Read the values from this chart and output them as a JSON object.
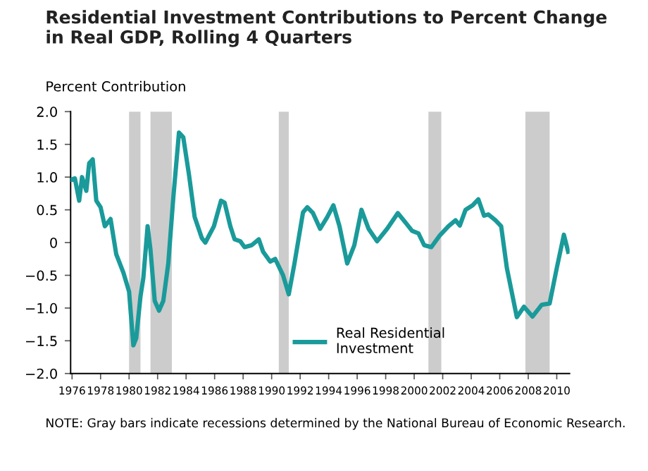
{
  "chart_data": {
    "type": "line",
    "title": "Residential Investment Contributions to Percent Change\nin Real GDP, Rolling 4 Quarters",
    "ylabel": "Percent Contribution",
    "annotations": [
      "NOTE: Gray bars indicate recessions determined by the National Bureau of Economic Research."
    ],
    "series": [
      {
        "name": "Real Residential\nInvestment",
        "color": "#1a9a9a",
        "x": [
          1975.9,
          1976.2,
          1976.5,
          1976.7,
          1977.0,
          1977.2,
          1977.45,
          1977.7,
          1978.0,
          1978.3,
          1978.7,
          1979.1,
          1979.6,
          1980.0,
          1980.3,
          1980.5,
          1980.8,
          1981.0,
          1981.3,
          1981.5,
          1981.8,
          1982.1,
          1982.4,
          1982.75,
          1983.1,
          1983.5,
          1983.8,
          1984.2,
          1984.6,
          1985.1,
          1985.35,
          1985.95,
          1986.45,
          1986.7,
          1987.1,
          1987.4,
          1987.8,
          1988.1,
          1988.6,
          1989.1,
          1989.4,
          1989.9,
          1990.25,
          1990.8,
          1991.2,
          1991.6,
          1992.2,
          1992.5,
          1992.9,
          1993.4,
          1993.9,
          1994.33,
          1994.76,
          1995.3,
          1995.8,
          1996.3,
          1996.8,
          1997.4,
          1998.1,
          1998.85,
          1999.45,
          1999.85,
          2000.3,
          2000.7,
          2001.2,
          2001.8,
          2002.4,
          2002.9,
          2003.2,
          2003.6,
          2004.1,
          2004.5,
          2004.9,
          2005.2,
          2005.7,
          2006.1,
          2006.5,
          2007.2,
          2007.7,
          2008.3,
          2008.95,
          2009.5,
          2010.0,
          2010.5,
          2010.8
        ],
        "values": [
          0.96,
          0.98,
          0.64,
          1.0,
          0.79,
          1.21,
          1.27,
          0.64,
          0.54,
          0.25,
          0.36,
          -0.18,
          -0.46,
          -0.75,
          -1.57,
          -1.46,
          -0.82,
          -0.54,
          0.25,
          -0.11,
          -0.89,
          -1.04,
          -0.89,
          -0.32,
          0.68,
          1.68,
          1.61,
          1.04,
          0.39,
          0.07,
          0.0,
          0.25,
          0.64,
          0.61,
          0.25,
          0.05,
          0.02,
          -0.07,
          -0.04,
          0.05,
          -0.14,
          -0.29,
          -0.25,
          -0.5,
          -0.79,
          -0.32,
          0.46,
          0.54,
          0.45,
          0.21,
          0.39,
          0.57,
          0.25,
          -0.32,
          -0.04,
          0.5,
          0.21,
          0.02,
          0.21,
          0.45,
          0.29,
          0.18,
          0.14,
          -0.04,
          -0.07,
          0.11,
          0.25,
          0.34,
          0.26,
          0.5,
          0.57,
          0.66,
          0.41,
          0.43,
          0.34,
          0.25,
          -0.39,
          -1.14,
          -0.98,
          -1.13,
          -0.95,
          -0.93,
          -0.39,
          0.12,
          -0.14
        ]
      }
    ],
    "bands": [
      {
        "axis": "x",
        "from": 1980.0,
        "to": 1980.8,
        "color": "#cccccc"
      },
      {
        "axis": "x",
        "from": 1981.5,
        "to": 1983.0,
        "color": "#cccccc"
      },
      {
        "axis": "x",
        "from": 1990.5,
        "to": 1991.2,
        "color": "#cccccc"
      },
      {
        "axis": "x",
        "from": 2001.0,
        "to": 2001.9,
        "color": "#cccccc"
      },
      {
        "axis": "x",
        "from": 2007.8,
        "to": 2009.5,
        "color": "#cccccc"
      }
    ],
    "xlim": [
      1975.9,
      2010.9
    ],
    "xticks": [
      1976,
      1978,
      1980,
      1982,
      1984,
      1986,
      1988,
      1990,
      1992,
      1994,
      1996,
      1998,
      2000,
      2002,
      2004,
      2006,
      2008,
      2010
    ],
    "ylim": [
      -2.0,
      2.0
    ],
    "yticks": [
      {
        "value": -2,
        "label": "−2.0"
      },
      {
        "value": -1.5,
        "label": "−1.5"
      },
      {
        "value": -1,
        "label": "−1.0"
      },
      {
        "value": -0.5,
        "label": "−0.5"
      },
      {
        "value": 0,
        "label": "0"
      },
      {
        "value": 0.5,
        "label": "0.5"
      },
      {
        "value": 1,
        "label": "1.0"
      },
      {
        "value": 1.5,
        "label": "1.5"
      },
      {
        "value": 2,
        "label": "2.0"
      }
    ],
    "grid": false,
    "legend": "bottom",
    "line_style": "solid",
    "marker": "none"
  }
}
